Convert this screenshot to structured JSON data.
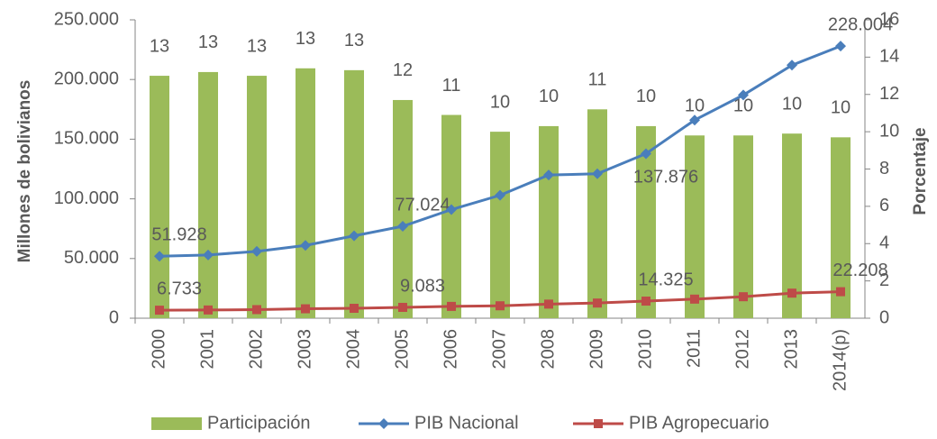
{
  "chart_data": {
    "type": "bar-line",
    "categories": [
      "2000",
      "2001",
      "2002",
      "2003",
      "2004",
      "2005",
      "2006",
      "2007",
      "2008",
      "2009",
      "2010",
      "2011",
      "2012",
      "2013",
      "2014(p)"
    ],
    "ylabel": "Millones de bolivianos",
    "y2label": "Porcentaje",
    "ylim": [
      0,
      250000
    ],
    "yticks": [
      0,
      {
        "value": 50000,
        "label": "50.000"
      },
      {
        "value": 100000,
        "label": "100.000"
      },
      {
        "value": 150000,
        "label": "150.000"
      },
      {
        "value": 200000,
        "label": "200.000"
      },
      {
        "value": 250000,
        "label": "250.000"
      }
    ],
    "y2lim": [
      0,
      16
    ],
    "y2ticks": [
      0,
      2,
      4,
      6,
      8,
      10,
      12,
      14,
      16
    ],
    "legend": "bottom",
    "series": [
      {
        "name": "Participación",
        "type": "bar",
        "axis": "y2",
        "color": "#9bbb59",
        "values": [
          13.0,
          13.2,
          13.0,
          13.4,
          13.3,
          11.7,
          10.9,
          10.0,
          10.3,
          11.2,
          10.3,
          9.8,
          9.8,
          9.9,
          9.7
        ],
        "value_labels": [
          "13",
          "13",
          "13",
          "13",
          "13",
          "12",
          "11",
          "10",
          "10",
          "11",
          "10",
          "10",
          "10",
          "10",
          "10"
        ]
      },
      {
        "name": "PIB Nacional",
        "type": "line",
        "marker": "diamond",
        "color": "#4a7ebb",
        "values": [
          51928,
          53000,
          56000,
          61000,
          69000,
          77024,
          91000,
          103000,
          120000,
          121000,
          137876,
          166000,
          187000,
          212000,
          228004
        ],
        "value_labels": [
          "51.928",
          null,
          null,
          null,
          null,
          "77.024",
          null,
          null,
          null,
          null,
          "137.876",
          null,
          null,
          null,
          "228.004"
        ]
      },
      {
        "name": "PIB Agropecuario",
        "type": "line",
        "marker": "square",
        "color": "#be4b48",
        "values": [
          6733,
          6900,
          7200,
          7900,
          8300,
          9083,
          9900,
          10400,
          11800,
          12700,
          14325,
          16000,
          18000,
          21000,
          22208
        ],
        "value_labels": [
          "6.733",
          null,
          null,
          null,
          null,
          "9.083",
          null,
          null,
          null,
          null,
          "14.325",
          null,
          null,
          null,
          "22.208"
        ]
      }
    ]
  }
}
